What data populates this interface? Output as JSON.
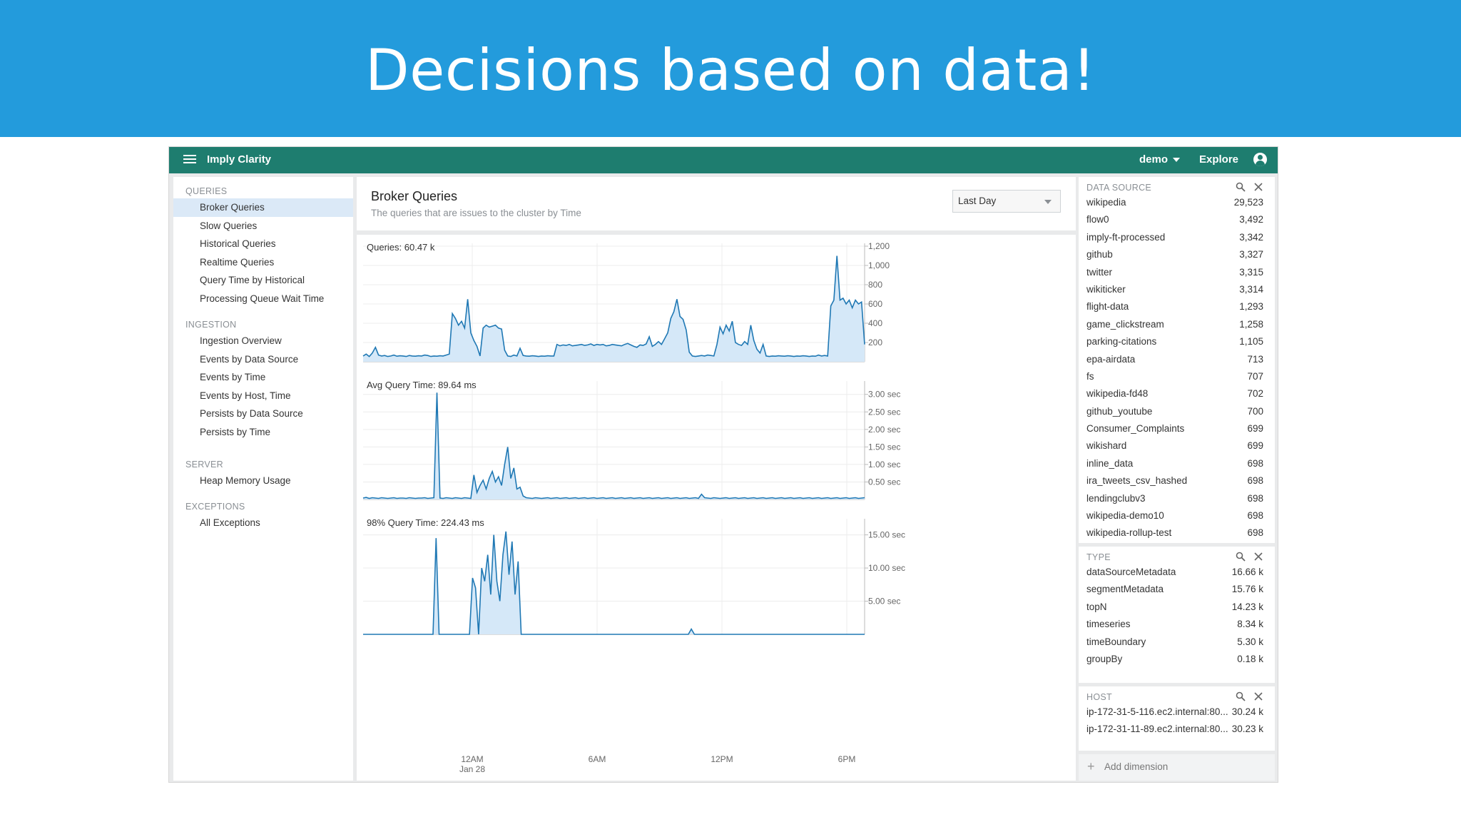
{
  "banner": {
    "title": "Decisions based on data!"
  },
  "topbar": {
    "brand": "Imply Clarity",
    "user": "demo",
    "explore": "Explore",
    "icons": [
      "menu-icon",
      "caret-down-icon",
      "account-icon"
    ]
  },
  "sidebar": {
    "sections": [
      {
        "title": "QUERIES",
        "items": [
          "Broker Queries",
          "Slow Queries",
          "Historical Queries",
          "Realtime Queries",
          "Query Time by Historical",
          "Processing Queue Wait Time"
        ]
      },
      {
        "title": "INGESTION",
        "items": [
          "Ingestion Overview",
          "Events by Data Source",
          "Events by Time",
          "Events by Host, Time",
          "Persists by Data Source",
          "Persists by Time"
        ]
      },
      {
        "title": "SERVER",
        "items": [
          "Heap Memory Usage"
        ]
      },
      {
        "title": "EXCEPTIONS",
        "items": [
          "All Exceptions"
        ]
      }
    ],
    "active": "Broker Queries"
  },
  "main": {
    "title": "Broker Queries",
    "subtitle": "The queries that are issues to the cluster by Time",
    "time_select": "Last Day"
  },
  "colors": {
    "line": "#1f78b4",
    "fill": "#d5e8f8",
    "topbar": "#1e7d6f",
    "banner": "#239bdc"
  },
  "chart_data": [
    {
      "type": "area",
      "title": "Queries: 60.47 k",
      "x_ticks": [
        "12AM Jan 28",
        "6AM",
        "12PM",
        "6PM"
      ],
      "y_ticks": [
        "200",
        "400",
        "600",
        "800",
        "1,000",
        "1,200"
      ],
      "ylim": [
        0,
        1200
      ],
      "grid": true,
      "values": [
        60,
        80,
        55,
        90,
        150,
        70,
        60,
        65,
        55,
        60,
        70,
        58,
        62,
        60,
        55,
        65,
        60,
        58,
        62,
        60,
        70,
        65,
        55,
        60,
        58,
        62,
        60,
        70,
        80,
        500,
        450,
        380,
        420,
        350,
        650,
        300,
        220,
        160,
        60,
        350,
        380,
        360,
        370,
        380,
        350,
        340,
        120,
        60,
        55,
        70,
        60,
        140,
        65,
        60,
        58,
        62,
        60,
        55,
        60,
        58,
        62,
        60,
        60,
        180,
        165,
        175,
        170,
        180,
        165,
        170,
        175,
        180,
        170,
        175,
        185,
        170,
        180,
        175,
        180,
        165,
        170,
        180,
        175,
        170,
        165,
        180,
        190,
        175,
        160,
        150,
        175,
        170,
        185,
        260,
        160,
        180,
        210,
        180,
        240,
        300,
        450,
        520,
        650,
        470,
        440,
        330,
        100,
        60,
        55,
        60,
        65,
        60,
        70,
        65,
        60,
        180,
        360,
        290,
        380,
        320,
        420,
        200,
        180,
        170,
        210,
        180,
        380,
        220,
        130,
        90,
        180,
        60,
        55,
        60,
        58,
        62,
        60,
        58,
        62,
        60,
        55,
        60,
        58,
        62,
        60,
        55,
        60,
        58,
        70,
        60,
        65,
        60,
        580,
        640,
        1100,
        640,
        660,
        600,
        640,
        560,
        640,
        600,
        620,
        180
      ]
    },
    {
      "type": "area",
      "title": "Avg Query Time: 89.64 ms",
      "y_ticks": [
        "0.50 sec",
        "1.00 sec",
        "1.50 sec",
        "2.00 sec",
        "2.50 sec",
        "3.00 sec"
      ],
      "ylim": [
        0,
        3.3
      ],
      "grid": true,
      "values": [
        0.04,
        0.06,
        0.03,
        0.05,
        0.04,
        0.03,
        0.05,
        0.04,
        0.03,
        0.04,
        0.05,
        0.03,
        0.04,
        0.04,
        0.03,
        0.05,
        0.04,
        0.03,
        0.04,
        0.04,
        0.05,
        0.03,
        0.04,
        0.05,
        3.05,
        0.04,
        0.03,
        0.05,
        0.04,
        0.03,
        0.05,
        0.04,
        0.03,
        0.05,
        0.04,
        0.03,
        0.7,
        0.2,
        0.4,
        0.55,
        0.3,
        0.6,
        0.8,
        0.5,
        0.65,
        0.4,
        1.0,
        1.5,
        0.6,
        0.9,
        0.3,
        0.35,
        0.1,
        0.05,
        0.04,
        0.03,
        0.05,
        0.04,
        0.03,
        0.04,
        0.05,
        0.03,
        0.04,
        0.05,
        0.03,
        0.04,
        0.05,
        0.03,
        0.04,
        0.05,
        0.03,
        0.04,
        0.05,
        0.03,
        0.04,
        0.05,
        0.03,
        0.04,
        0.05,
        0.03,
        0.04,
        0.05,
        0.03,
        0.04,
        0.05,
        0.03,
        0.04,
        0.05,
        0.03,
        0.04,
        0.05,
        0.03,
        0.04,
        0.05,
        0.03,
        0.04,
        0.05,
        0.03,
        0.04,
        0.05,
        0.03,
        0.04,
        0.05,
        0.03,
        0.04,
        0.05,
        0.03,
        0.04,
        0.05,
        0.03,
        0.15,
        0.05,
        0.04,
        0.03,
        0.05,
        0.04,
        0.03,
        0.04,
        0.05,
        0.03,
        0.04,
        0.05,
        0.03,
        0.04,
        0.05,
        0.03,
        0.04,
        0.05,
        0.03,
        0.04,
        0.05,
        0.03,
        0.04,
        0.05,
        0.03,
        0.04,
        0.05,
        0.03,
        0.04,
        0.05,
        0.03,
        0.04,
        0.05,
        0.03,
        0.04,
        0.05,
        0.03,
        0.04,
        0.05,
        0.03,
        0.04,
        0.05,
        0.03,
        0.04,
        0.05,
        0.03,
        0.04,
        0.05,
        0.03,
        0.04,
        0.05,
        0.03,
        0.04,
        0.05
      ]
    },
    {
      "type": "area",
      "title": "98% Query Time: 224.43 ms",
      "y_ticks": [
        "5.00 sec",
        "10.00 sec",
        "15.00 sec"
      ],
      "ylim": [
        0,
        17
      ],
      "grid": true,
      "values": [
        0,
        0,
        0,
        0,
        0,
        0,
        0,
        0,
        0,
        0,
        0,
        0,
        0,
        0,
        0,
        0,
        0,
        0,
        0,
        0,
        0,
        0,
        0,
        0,
        14.5,
        0,
        0,
        0,
        0,
        0,
        0,
        0,
        0,
        0,
        0,
        0,
        8.5,
        7,
        0,
        10,
        8,
        12,
        6,
        15,
        8,
        5,
        12,
        15.5,
        9,
        14,
        6,
        11,
        0,
        0,
        0,
        0,
        0,
        0,
        0,
        0,
        0,
        0,
        0,
        0,
        0,
        0,
        0,
        0,
        0,
        0,
        0,
        0,
        0,
        0,
        0,
        0,
        0,
        0,
        0,
        0,
        0,
        0,
        0,
        0,
        0,
        0,
        0,
        0,
        0,
        0,
        0,
        0,
        0,
        0,
        0,
        0,
        0,
        0,
        0,
        0,
        0,
        0,
        0,
        0,
        0,
        0,
        0,
        0,
        0.8,
        0,
        0,
        0,
        0,
        0,
        0,
        0,
        0,
        0,
        0,
        0,
        0,
        0,
        0,
        0,
        0,
        0,
        0,
        0,
        0,
        0,
        0,
        0,
        0,
        0,
        0,
        0,
        0,
        0,
        0,
        0,
        0,
        0,
        0,
        0,
        0,
        0,
        0,
        0,
        0,
        0,
        0,
        0,
        0,
        0,
        0,
        0,
        0,
        0,
        0,
        0,
        0,
        0,
        0,
        0,
        0,
        0
      ]
    }
  ],
  "dimensions": [
    {
      "label": "DATA SOURCE",
      "rows": [
        [
          "wikipedia",
          "29,523"
        ],
        [
          "flow0",
          "3,492"
        ],
        [
          "imply-ft-processed",
          "3,342"
        ],
        [
          "github",
          "3,327"
        ],
        [
          "twitter",
          "3,315"
        ],
        [
          "wikiticker",
          "3,314"
        ],
        [
          "flight-data",
          "1,293"
        ],
        [
          "game_clickstream",
          "1,258"
        ],
        [
          "parking-citations",
          "1,105"
        ],
        [
          "epa-airdata",
          "713"
        ],
        [
          "fs",
          "707"
        ],
        [
          "wikipedia-fd48",
          "702"
        ],
        [
          "github_youtube",
          "700"
        ],
        [
          "Consumer_Complaints",
          "699"
        ],
        [
          "wikishard",
          "699"
        ],
        [
          "inline_data",
          "698"
        ],
        [
          "ira_tweets_csv_hashed",
          "698"
        ],
        [
          "lendingclubv3",
          "698"
        ],
        [
          "wikipedia-demo10",
          "698"
        ],
        [
          "wikipedia-rollup-test",
          "698"
        ]
      ]
    },
    {
      "label": "TYPE",
      "rows": [
        [
          "dataSourceMetadata",
          "16.66 k"
        ],
        [
          "segmentMetadata",
          "15.76 k"
        ],
        [
          "topN",
          "14.23 k"
        ],
        [
          "timeseries",
          "8.34 k"
        ],
        [
          "timeBoundary",
          "5.30 k"
        ],
        [
          "groupBy",
          "0.18 k"
        ]
      ]
    },
    {
      "label": "HOST",
      "rows": [
        [
          "ip-172-31-5-116.ec2.internal:80...",
          "30.24 k"
        ],
        [
          "ip-172-31-11-89.ec2.internal:80...",
          "30.23 k"
        ]
      ]
    }
  ],
  "add_dimension": "Add dimension"
}
